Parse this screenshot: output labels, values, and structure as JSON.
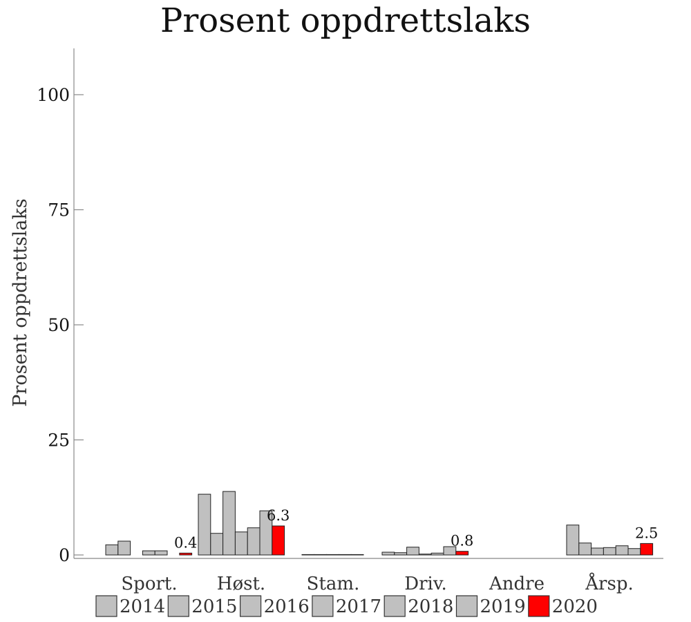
{
  "chart_data": {
    "type": "bar",
    "title": "Prosent oppdrettslaks",
    "ylabel": "Prosent oppdrettslaks",
    "xlabel": "",
    "ylim": [
      0,
      110
    ],
    "yticks": [
      0,
      25,
      50,
      75,
      100
    ],
    "categories": [
      "Sport.",
      "Høst.",
      "Stam.",
      "Driv.",
      "Andre",
      "Årsp."
    ],
    "series": [
      {
        "name": "2014",
        "color": "#c0c0c0",
        "values": [
          2.2,
          13.2,
          0,
          0.6,
          null,
          6.5
        ]
      },
      {
        "name": "2015",
        "color": "#c0c0c0",
        "values": [
          3.0,
          4.7,
          0,
          0.5,
          null,
          2.6
        ]
      },
      {
        "name": "2016",
        "color": "#c0c0c0",
        "values": [
          null,
          13.8,
          0,
          1.7,
          null,
          1.5
        ]
      },
      {
        "name": "2017",
        "color": "#c0c0c0",
        "values": [
          0.9,
          5.0,
          0,
          0.2,
          null,
          1.6
        ]
      },
      {
        "name": "2018",
        "color": "#c0c0c0",
        "values": [
          0.9,
          5.9,
          0,
          0.4,
          null,
          2.0
        ]
      },
      {
        "name": "2019",
        "color": "#c0c0c0",
        "values": [
          null,
          9.6,
          null,
          1.8,
          null,
          1.4
        ]
      },
      {
        "name": "2020",
        "color": "#ff0000",
        "values": [
          0.4,
          6.3,
          null,
          0.8,
          null,
          2.5
        ]
      }
    ],
    "data_labels": [
      {
        "category": "Sport.",
        "series": "2020",
        "text": "0.4"
      },
      {
        "category": "Høst.",
        "series": "2020",
        "text": "6.3"
      },
      {
        "category": "Driv.",
        "series": "2020",
        "text": "0.8"
      },
      {
        "category": "Årsp.",
        "series": "2020",
        "text": "2.5"
      }
    ],
    "legend_position": "bottom",
    "grid": false
  }
}
